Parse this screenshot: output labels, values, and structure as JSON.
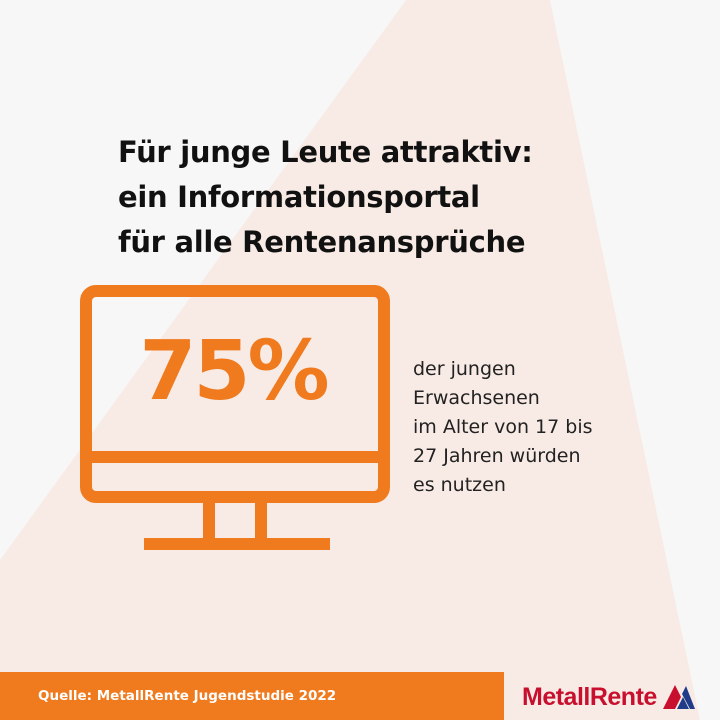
{
  "headline": {
    "line1": "Für junge Leute attraktiv:",
    "line2": "ein Informationsportal",
    "line3": "für alle Rentenansprüche"
  },
  "stat": {
    "value": "75%",
    "description_lines": [
      "der jungen",
      "Erwachsenen",
      "im Alter von 17 bis",
      "27 Jahren würden",
      "es nutzen"
    ]
  },
  "footer": {
    "source": "Quelle: MetallRente Jugendstudie 2022"
  },
  "logo": {
    "text": "MetallRente"
  },
  "icons": {
    "monitor": "computer-monitor-icon",
    "logo_mark": "triangle-mark-icon"
  },
  "colors": {
    "accent": "#f07a1e",
    "background": "#f7f7f8",
    "wedge": "#f8ebe5",
    "logo_red": "#c8102e",
    "logo_blue": "#1f3c88"
  }
}
